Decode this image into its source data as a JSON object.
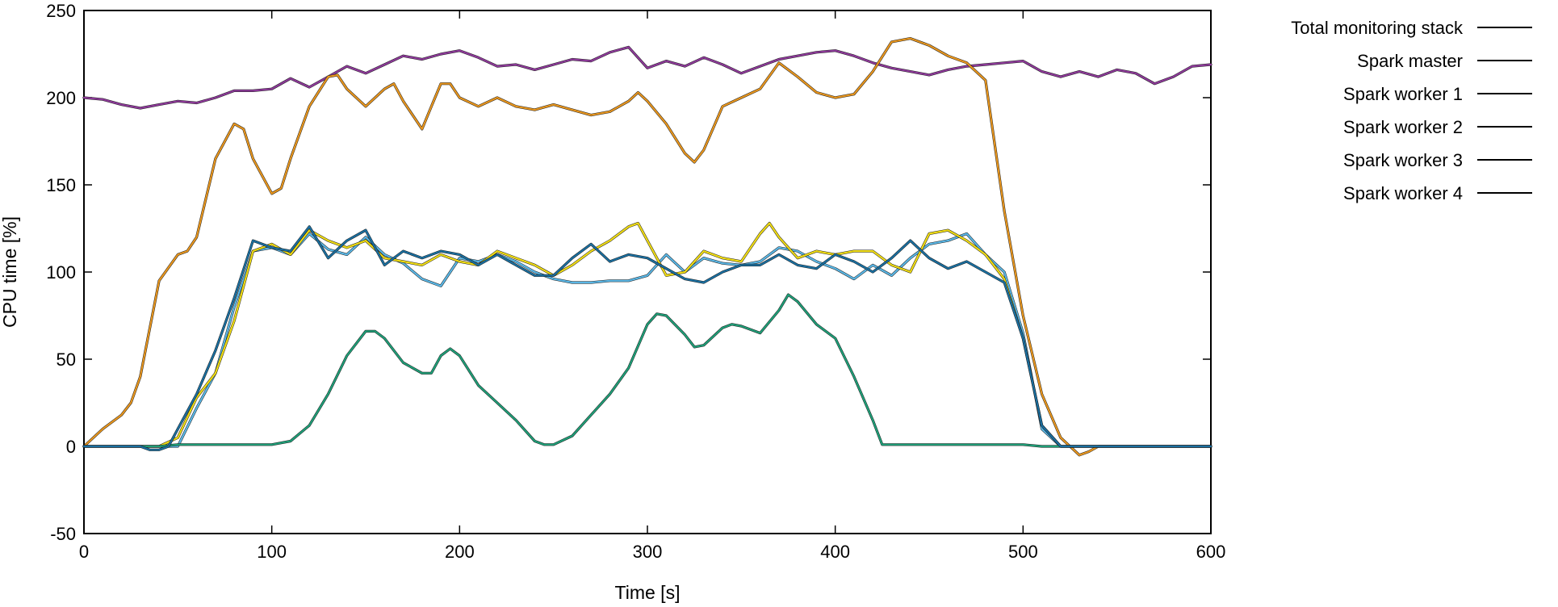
{
  "chart_data": {
    "type": "line",
    "title": "",
    "xlabel": "Time [s]",
    "ylabel": "CPU time [%]",
    "xlim": [
      0,
      600
    ],
    "ylim": [
      -50,
      250
    ],
    "xticks": [
      0,
      100,
      200,
      300,
      400,
      500,
      600
    ],
    "yticks": [
      -50,
      0,
      50,
      100,
      150,
      200,
      250
    ],
    "xtick_labels": [
      "0",
      "100",
      "200",
      "300",
      "400",
      "500",
      "600"
    ],
    "ytick_labels": [
      "-50",
      "0",
      "50",
      "100",
      "150",
      "200",
      "250"
    ],
    "grid": false,
    "legend_position": "outside-right-top",
    "series": [
      {
        "name": "Total monitoring stack",
        "color": "#8e3a9a",
        "x": [
          0,
          10,
          20,
          30,
          40,
          50,
          60,
          70,
          80,
          90,
          100,
          110,
          120,
          130,
          140,
          150,
          160,
          170,
          180,
          190,
          200,
          210,
          220,
          230,
          240,
          250,
          260,
          270,
          280,
          290,
          300,
          310,
          320,
          330,
          340,
          350,
          360,
          370,
          380,
          390,
          400,
          410,
          420,
          430,
          440,
          450,
          460,
          470,
          480,
          490,
          500,
          510,
          520,
          530,
          540,
          550,
          560,
          570,
          580,
          590,
          600
        ],
        "values": [
          200,
          199,
          196,
          194,
          196,
          198,
          197,
          200,
          204,
          204,
          205,
          211,
          206,
          212,
          218,
          214,
          219,
          224,
          222,
          225,
          227,
          223,
          218,
          219,
          216,
          219,
          222,
          221,
          226,
          229,
          217,
          221,
          218,
          223,
          219,
          214,
          218,
          222,
          224,
          226,
          227,
          224,
          220,
          217,
          215,
          213,
          216,
          218,
          219,
          220,
          221,
          215,
          212,
          215,
          212,
          216,
          214,
          208,
          212,
          218,
          219
        ]
      },
      {
        "name": "Spark master",
        "color": "#e8961e",
        "x": [
          0,
          10,
          20,
          25,
          30,
          40,
          50,
          55,
          60,
          70,
          80,
          85,
          90,
          100,
          105,
          110,
          120,
          130,
          135,
          140,
          150,
          160,
          165,
          170,
          180,
          185,
          190,
          195,
          200,
          210,
          220,
          230,
          240,
          250,
          260,
          270,
          280,
          290,
          295,
          300,
          310,
          320,
          325,
          330,
          340,
          350,
          360,
          370,
          380,
          390,
          400,
          410,
          420,
          430,
          440,
          450,
          460,
          470,
          480,
          490,
          500,
          510,
          520,
          525,
          530,
          535,
          540,
          550,
          560,
          570,
          580,
          590,
          600
        ],
        "values": [
          0,
          10,
          18,
          25,
          40,
          95,
          110,
          112,
          120,
          165,
          185,
          182,
          165,
          145,
          148,
          165,
          195,
          212,
          213,
          205,
          195,
          205,
          208,
          198,
          182,
          195,
          208,
          208,
          200,
          195,
          200,
          195,
          193,
          196,
          193,
          190,
          192,
          198,
          203,
          198,
          185,
          168,
          163,
          170,
          195,
          200,
          205,
          220,
          212,
          203,
          200,
          202,
          215,
          232,
          234,
          230,
          224,
          220,
          210,
          135,
          75,
          30,
          5,
          0,
          -5,
          -3,
          0,
          0,
          0,
          0,
          0,
          0,
          0
        ]
      },
      {
        "name": "Spark worker 1",
        "color": "#5ab7e6",
        "x": [
          0,
          10,
          20,
          30,
          40,
          50,
          60,
          70,
          80,
          90,
          100,
          110,
          120,
          130,
          140,
          150,
          160,
          170,
          180,
          190,
          200,
          210,
          220,
          230,
          240,
          250,
          260,
          270,
          280,
          290,
          300,
          310,
          320,
          330,
          340,
          350,
          360,
          370,
          380,
          390,
          400,
          410,
          420,
          430,
          440,
          450,
          460,
          470,
          480,
          490,
          500,
          510,
          520,
          530,
          540,
          550,
          560,
          570,
          580,
          590,
          600
        ],
        "values": [
          0,
          0,
          0,
          0,
          0,
          0,
          22,
          42,
          80,
          112,
          114,
          110,
          122,
          113,
          110,
          120,
          110,
          105,
          96,
          92,
          108,
          106,
          110,
          106,
          100,
          96,
          94,
          94,
          95,
          95,
          98,
          110,
          100,
          108,
          105,
          104,
          106,
          114,
          112,
          106,
          102,
          96,
          104,
          98,
          108,
          116,
          118,
          122,
          110,
          100,
          65,
          10,
          0,
          0,
          0,
          0,
          0,
          0,
          0,
          0,
          0
        ]
      },
      {
        "name": "Spark worker 2",
        "color": "#f0dc14",
        "x": [
          0,
          10,
          20,
          30,
          40,
          50,
          60,
          70,
          80,
          90,
          100,
          110,
          120,
          130,
          140,
          150,
          160,
          170,
          180,
          190,
          200,
          210,
          220,
          230,
          240,
          250,
          260,
          270,
          280,
          290,
          295,
          300,
          310,
          320,
          330,
          340,
          350,
          360,
          365,
          370,
          380,
          390,
          400,
          410,
          420,
          430,
          440,
          450,
          460,
          470,
          480,
          490,
          500,
          510,
          520,
          530,
          540,
          550,
          560,
          570,
          580,
          590,
          600
        ],
        "values": [
          0,
          0,
          0,
          0,
          0,
          5,
          28,
          42,
          72,
          112,
          116,
          110,
          124,
          118,
          114,
          118,
          108,
          106,
          104,
          110,
          106,
          104,
          112,
          108,
          104,
          98,
          104,
          112,
          118,
          126,
          128,
          118,
          98,
          100,
          112,
          108,
          106,
          122,
          128,
          120,
          108,
          112,
          110,
          112,
          112,
          104,
          100,
          122,
          124,
          118,
          110,
          96,
          62,
          12,
          0,
          0,
          0,
          0,
          0,
          0,
          0,
          0,
          0
        ]
      },
      {
        "name": "Spark worker 3",
        "color": "#1f9f78",
        "x": [
          0,
          10,
          20,
          30,
          40,
          50,
          60,
          70,
          80,
          90,
          100,
          110,
          120,
          130,
          140,
          150,
          155,
          160,
          170,
          180,
          185,
          190,
          195,
          200,
          210,
          220,
          230,
          240,
          245,
          250,
          260,
          270,
          280,
          290,
          300,
          305,
          310,
          320,
          325,
          330,
          340,
          345,
          350,
          360,
          370,
          375,
          380,
          390,
          400,
          410,
          420,
          425,
          430,
          440,
          450,
          460,
          470,
          480,
          490,
          500,
          510,
          520,
          530,
          540,
          550,
          560,
          570,
          580,
          590,
          600
        ],
        "values": [
          0,
          0,
          0,
          0,
          0,
          1,
          1,
          1,
          1,
          1,
          1,
          3,
          12,
          30,
          52,
          66,
          66,
          62,
          48,
          42,
          42,
          52,
          56,
          52,
          35,
          25,
          15,
          3,
          1,
          1,
          6,
          18,
          30,
          45,
          70,
          76,
          75,
          64,
          57,
          58,
          68,
          70,
          69,
          65,
          78,
          87,
          83,
          70,
          62,
          40,
          15,
          1,
          1,
          1,
          1,
          1,
          1,
          1,
          1,
          1,
          0,
          0,
          0,
          0,
          0,
          0,
          0,
          0,
          0,
          0
        ]
      },
      {
        "name": "Spark worker 4",
        "color": "#1a6fa0",
        "x": [
          0,
          10,
          20,
          30,
          35,
          40,
          45,
          50,
          60,
          70,
          80,
          90,
          100,
          110,
          120,
          130,
          140,
          150,
          160,
          170,
          180,
          190,
          200,
          210,
          220,
          230,
          240,
          250,
          260,
          270,
          280,
          290,
          300,
          310,
          320,
          330,
          340,
          350,
          360,
          370,
          380,
          390,
          400,
          410,
          420,
          430,
          440,
          450,
          460,
          470,
          480,
          490,
          500,
          510,
          520,
          530,
          540,
          550,
          560,
          570,
          580,
          590,
          600
        ],
        "values": [
          0,
          0,
          0,
          0,
          -2,
          -2,
          0,
          10,
          30,
          55,
          85,
          118,
          114,
          112,
          126,
          108,
          118,
          124,
          104,
          112,
          108,
          112,
          110,
          104,
          110,
          104,
          98,
          98,
          108,
          116,
          106,
          110,
          108,
          102,
          96,
          94,
          100,
          104,
          104,
          110,
          104,
          102,
          110,
          106,
          100,
          108,
          118,
          108,
          102,
          106,
          100,
          94,
          62,
          12,
          0,
          0,
          0,
          0,
          0,
          0,
          0,
          0,
          0
        ]
      }
    ]
  }
}
